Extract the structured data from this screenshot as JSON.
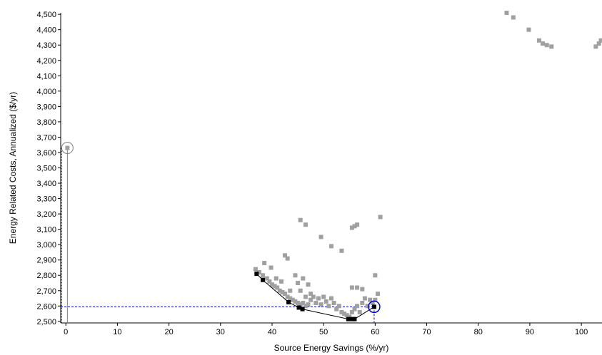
{
  "chart_data": {
    "type": "scatter",
    "xlabel": "Source Energy Savings (%/yr)",
    "ylabel": "Energy Related Costs, Annualized ($/yr)",
    "xlim": [
      -1,
      104
    ],
    "ylim": [
      2490,
      4510
    ],
    "x_ticks": [
      0,
      10,
      20,
      30,
      40,
      50,
      60,
      70,
      80,
      90,
      100
    ],
    "y_ticks": [
      2500,
      2600,
      2700,
      2800,
      2900,
      3000,
      3100,
      3200,
      3300,
      3400,
      3500,
      3600,
      3700,
      3800,
      3900,
      4000,
      4100,
      4200,
      4300,
      4400,
      4500
    ],
    "grid": false,
    "colors": {
      "points": "#a0a0a0",
      "pareto": "#000000",
      "selection": "#0000cc",
      "reference": "#808080"
    },
    "series": [
      {
        "values": [
          [
            0.3,
            3630
          ],
          [
            36.8,
            2840
          ],
          [
            37.5,
            2820
          ],
          [
            38.2,
            2800
          ],
          [
            38.5,
            2880
          ],
          [
            39.0,
            2780
          ],
          [
            39.5,
            2760
          ],
          [
            39.8,
            2850
          ],
          [
            40.0,
            2740
          ],
          [
            40.5,
            2730
          ],
          [
            40.8,
            2780
          ],
          [
            41.0,
            2720
          ],
          [
            41.5,
            2700
          ],
          [
            41.8,
            2760
          ],
          [
            42.0,
            2690
          ],
          [
            42.5,
            2680
          ],
          [
            42.5,
            2930
          ],
          [
            43.0,
            2910
          ],
          [
            43.0,
            2660
          ],
          [
            43.5,
            2650
          ],
          [
            43.5,
            2700
          ],
          [
            44.0,
            2640
          ],
          [
            44.5,
            2630
          ],
          [
            44.5,
            2800
          ],
          [
            45.0,
            2620
          ],
          [
            45.0,
            2750
          ],
          [
            45.5,
            2610
          ],
          [
            45.5,
            2700
          ],
          [
            46.0,
            2620
          ],
          [
            46.0,
            2780
          ],
          [
            46.5,
            2600
          ],
          [
            46.5,
            2660
          ],
          [
            47.0,
            2740
          ],
          [
            47.0,
            2610
          ],
          [
            47.5,
            2680
          ],
          [
            47.5,
            2640
          ],
          [
            48.0,
            2660
          ],
          [
            48.5,
            2620
          ],
          [
            49.0,
            2650
          ],
          [
            49.5,
            2610
          ],
          [
            50.0,
            2660
          ],
          [
            50.5,
            2630
          ],
          [
            51.0,
            2600
          ],
          [
            51.5,
            2650
          ],
          [
            52.0,
            2620
          ],
          [
            52.5,
            2580
          ],
          [
            53.0,
            2600
          ],
          [
            53.5,
            2560
          ],
          [
            54.0,
            2550
          ],
          [
            54.5,
            2540
          ],
          [
            55.0,
            2530
          ],
          [
            55.5,
            2560
          ],
          [
            56.0,
            2580
          ],
          [
            56.5,
            2600
          ],
          [
            57.0,
            2560
          ],
          [
            57.5,
            2620
          ],
          [
            58.0,
            2650
          ],
          [
            58.5,
            2600
          ],
          [
            59.0,
            2640
          ],
          [
            59.5,
            2620
          ],
          [
            60.0,
            2640
          ],
          [
            60.5,
            2680
          ],
          [
            55.5,
            2720
          ],
          [
            56.5,
            2720
          ],
          [
            57.5,
            2710
          ],
          [
            60.0,
            2800
          ],
          [
            45.5,
            3160
          ],
          [
            46.5,
            3130
          ],
          [
            49.5,
            3050
          ],
          [
            51.5,
            2990
          ],
          [
            53.5,
            2960
          ],
          [
            55.5,
            3110
          ],
          [
            56.0,
            3120
          ],
          [
            56.5,
            3130
          ],
          [
            61.0,
            3180
          ],
          [
            85.5,
            4510
          ],
          [
            86.8,
            4480
          ],
          [
            89.8,
            4400
          ],
          [
            91.8,
            4330
          ],
          [
            92.5,
            4310
          ],
          [
            93.3,
            4300
          ],
          [
            94.2,
            4290
          ],
          [
            102.8,
            4290
          ],
          [
            103.4,
            4310
          ],
          [
            103.8,
            4330
          ]
        ]
      },
      {
        "values": [
          [
            37.0,
            2810
          ],
          [
            38.2,
            2770
          ],
          [
            43.2,
            2625
          ],
          [
            45.2,
            2590
          ],
          [
            45.9,
            2580
          ],
          [
            54.8,
            2515
          ],
          [
            55.6,
            2515
          ],
          [
            56.0,
            2515
          ],
          [
            59.8,
            2595
          ]
        ]
      }
    ],
    "highlight": {
      "x": 59.8,
      "y": 2595
    },
    "reference": {
      "x": 0.3,
      "y": 3630
    }
  }
}
